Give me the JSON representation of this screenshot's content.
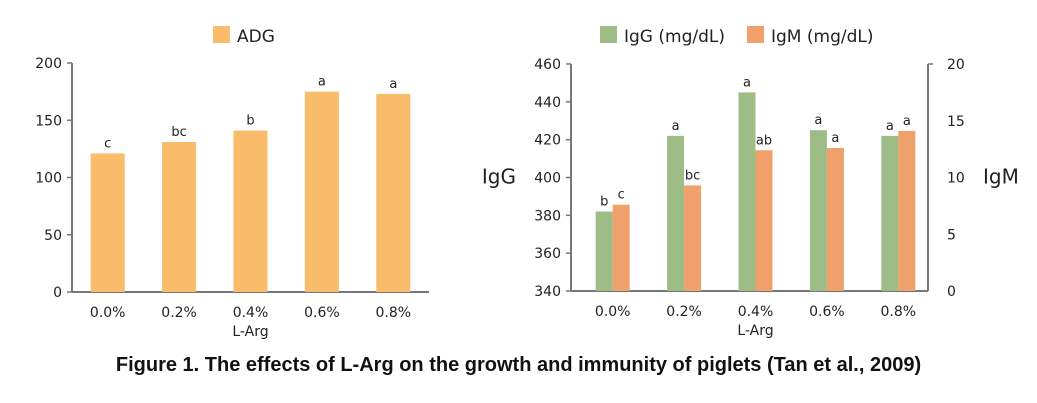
{
  "caption": "Figure 1. The effects of L-Arg on the growth and immunity of piglets (Tan et al., 2009)",
  "chart_data": [
    {
      "type": "bar",
      "categories": [
        "0.0%",
        "0.2%",
        "0.4%",
        "0.6%",
        "0.8%"
      ],
      "xlabel": "L-Arg",
      "ylabel": "",
      "ylim": [
        0,
        200
      ],
      "yticks": [
        0,
        50,
        100,
        150,
        200
      ],
      "legend": "top-center",
      "series": [
        {
          "name": "ADG",
          "color": "#F8BC6A",
          "values": [
            121,
            131,
            141,
            175,
            173
          ],
          "labels": [
            "c",
            "bc",
            "b",
            "a",
            "a"
          ]
        }
      ]
    },
    {
      "type": "bar",
      "categories": [
        "0.0%",
        "0.2%",
        "0.4%",
        "0.6%",
        "0.8%"
      ],
      "xlabel": "L-Arg",
      "ylabel": "IgG",
      "y2label": "IgM",
      "ylim": [
        340,
        460
      ],
      "yticks": [
        340,
        360,
        380,
        400,
        420,
        440,
        460
      ],
      "y2lim": [
        0,
        20
      ],
      "y2ticks": [
        0,
        5,
        10,
        15,
        20
      ],
      "legend": "top-center",
      "series": [
        {
          "name": "IgG (mg/dL)",
          "axis": "left",
          "color": "#9DBC86",
          "values": [
            382,
            422,
            445,
            425,
            422
          ],
          "labels": [
            "b",
            "a",
            "a",
            "a",
            "a"
          ]
        },
        {
          "name": "IgM (mg/dL)",
          "axis": "right",
          "color": "#EFA06B",
          "values": [
            7.6,
            9.3,
            12.4,
            12.6,
            14.1
          ],
          "labels": [
            "c",
            "bc",
            "ab",
            "a",
            "a"
          ]
        }
      ]
    }
  ]
}
